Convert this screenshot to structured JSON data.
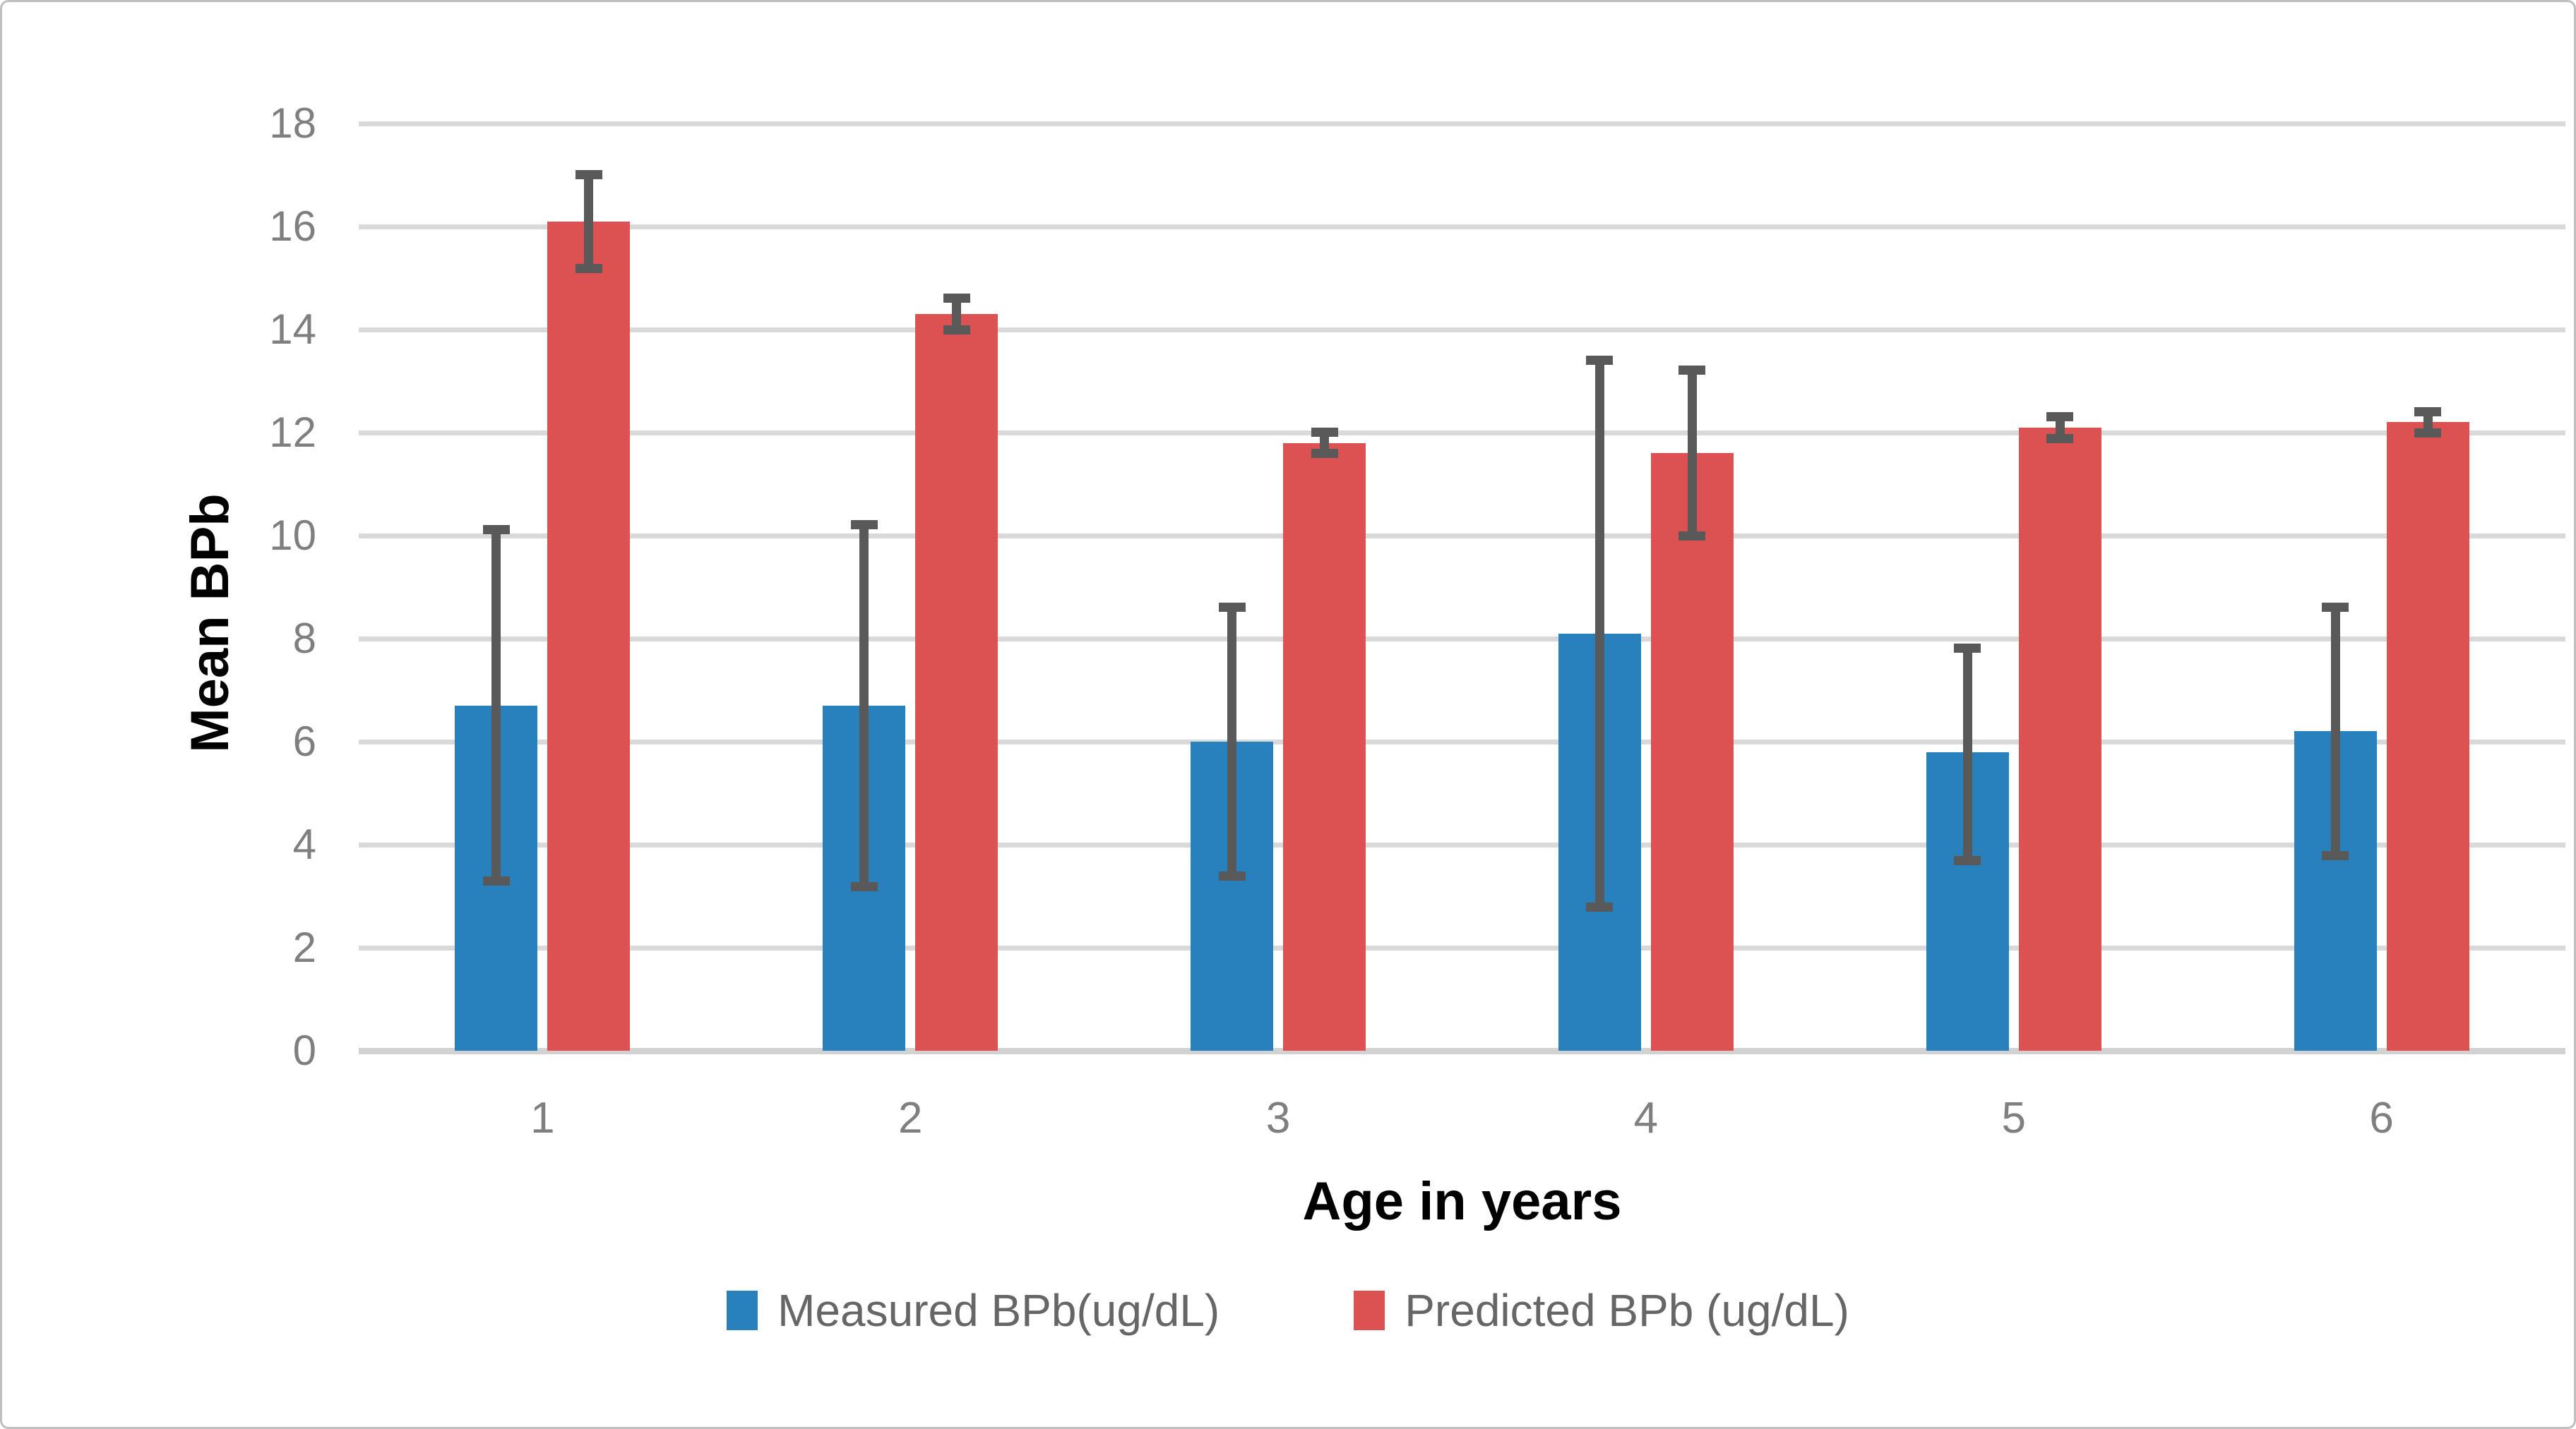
{
  "chart_data": {
    "type": "bar",
    "title": "",
    "xlabel": "Age in years",
    "ylabel": "Mean BPb",
    "categories": [
      "1",
      "2",
      "3",
      "4",
      "5",
      "6"
    ],
    "yticks": [
      0,
      2,
      4,
      6,
      8,
      10,
      12,
      14,
      16,
      18
    ],
    "ylim": [
      0,
      18
    ],
    "grid": "horizontal",
    "legend_position": "bottom",
    "series": [
      {
        "name": "Measured BPb(ug/dL)",
        "color": "#2880BC",
        "values": [
          6.7,
          6.7,
          6.0,
          8.1,
          5.8,
          6.2
        ],
        "error_low": [
          3.2,
          3.1,
          3.3,
          2.7,
          3.6,
          3.7
        ],
        "error_high": [
          10.2,
          10.3,
          8.7,
          13.5,
          7.9,
          8.7
        ]
      },
      {
        "name": "Predicted BPb (ug/dL)",
        "color": "#DC5151",
        "values": [
          16.1,
          14.3,
          11.8,
          11.6,
          12.1,
          12.2
        ],
        "error_low": [
          15.1,
          13.9,
          11.5,
          9.9,
          11.8,
          11.9
        ],
        "error_high": [
          17.1,
          14.7,
          12.1,
          13.3,
          12.4,
          12.5
        ]
      }
    ],
    "error_bar_color": "#595959",
    "gridline_color": "#D9D9D9",
    "baseline_color": "#D2D2D2",
    "tick_label_color": "#7F7F7F",
    "axis_title_color": "#000000",
    "background_color": "#FFFFFF",
    "border_color": "#BFBFBF"
  }
}
